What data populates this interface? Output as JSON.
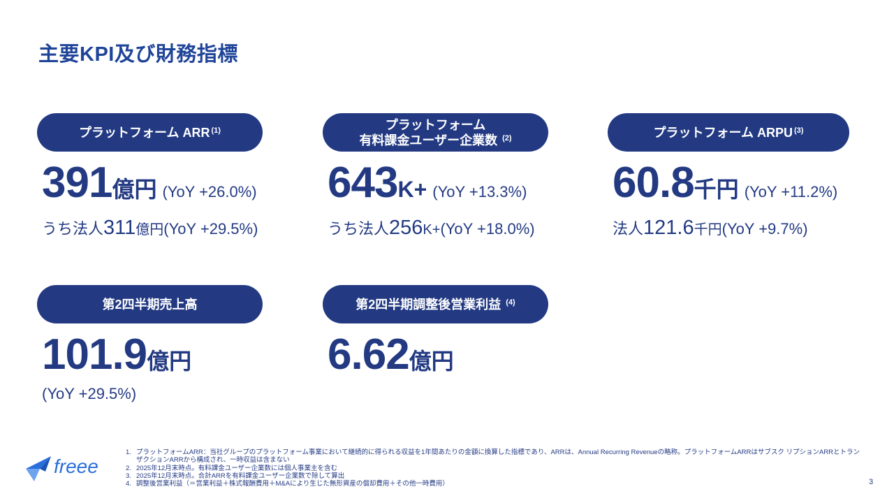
{
  "title": "主要KPI及び財務指標",
  "kpis": {
    "arr": {
      "label": "プラットフォーム ARR",
      "note": "(1)",
      "value": "391",
      "unit": "億円",
      "yoy": "(YoY +26.0%)",
      "sub_prefix": "うち法人",
      "sub_value": "311",
      "sub_unit": "億円",
      "sub_yoy": "(YoY +29.5%)"
    },
    "users": {
      "label_line1": "プラットフォーム",
      "label_line2": "有料課金ユーザー企業数",
      "note": "(2)",
      "value": "643",
      "unit": "K+",
      "yoy": "(YoY +13.3%)",
      "sub_prefix": "うち法人",
      "sub_value": "256",
      "sub_unit": "K+",
      "sub_yoy": "(YoY +18.0%)"
    },
    "arpu": {
      "label": "プラットフォーム ARPU",
      "note": "(3)",
      "value": "60.8",
      "unit": "千円",
      "yoy": "(YoY +11.2%)",
      "sub_prefix": "法人",
      "sub_value": "121.6",
      "sub_unit": "千円",
      "sub_yoy": "(YoY +9.7%)"
    },
    "revenue": {
      "label": "第2四半期売上高",
      "value": "101.9",
      "unit": "億円",
      "yoy": "(YoY +29.5%)"
    },
    "op_income": {
      "label": "第2四半期調整後営業利益",
      "note": "(4)",
      "value": "6.62",
      "unit": "億円"
    }
  },
  "footnotes": [
    {
      "num": "1.",
      "text": "プラットフォームARR：当社グループのプラットフォーム事業において継続的に得られる収益を1年間あたりの金額に換算した指標であり、ARRは、Annual Recurring Revenueの略称。プラットフォームARRはサブスク リプションARRとトランザクションARRから構成され、一時収益は含まない"
    },
    {
      "num": "2.",
      "text": "2025年12月末時点。有料課金ユーザー企業数には個人事業主を含む"
    },
    {
      "num": "3.",
      "text": "2025年12月末時点。合計ARRを有料課金ユーザー企業数で除して算出"
    },
    {
      "num": "4.",
      "text": "調整後営業利益（＝営業利益＋株式報酬費用＋M&Aにより生じた無形資産の償却費用＋その他一時費用）"
    }
  ],
  "logo_text": "freee",
  "page_number": "3",
  "colors": {
    "navy": "#233a83",
    "title_blue": "#1f4499",
    "logo_blue": "#2a6fdb"
  }
}
